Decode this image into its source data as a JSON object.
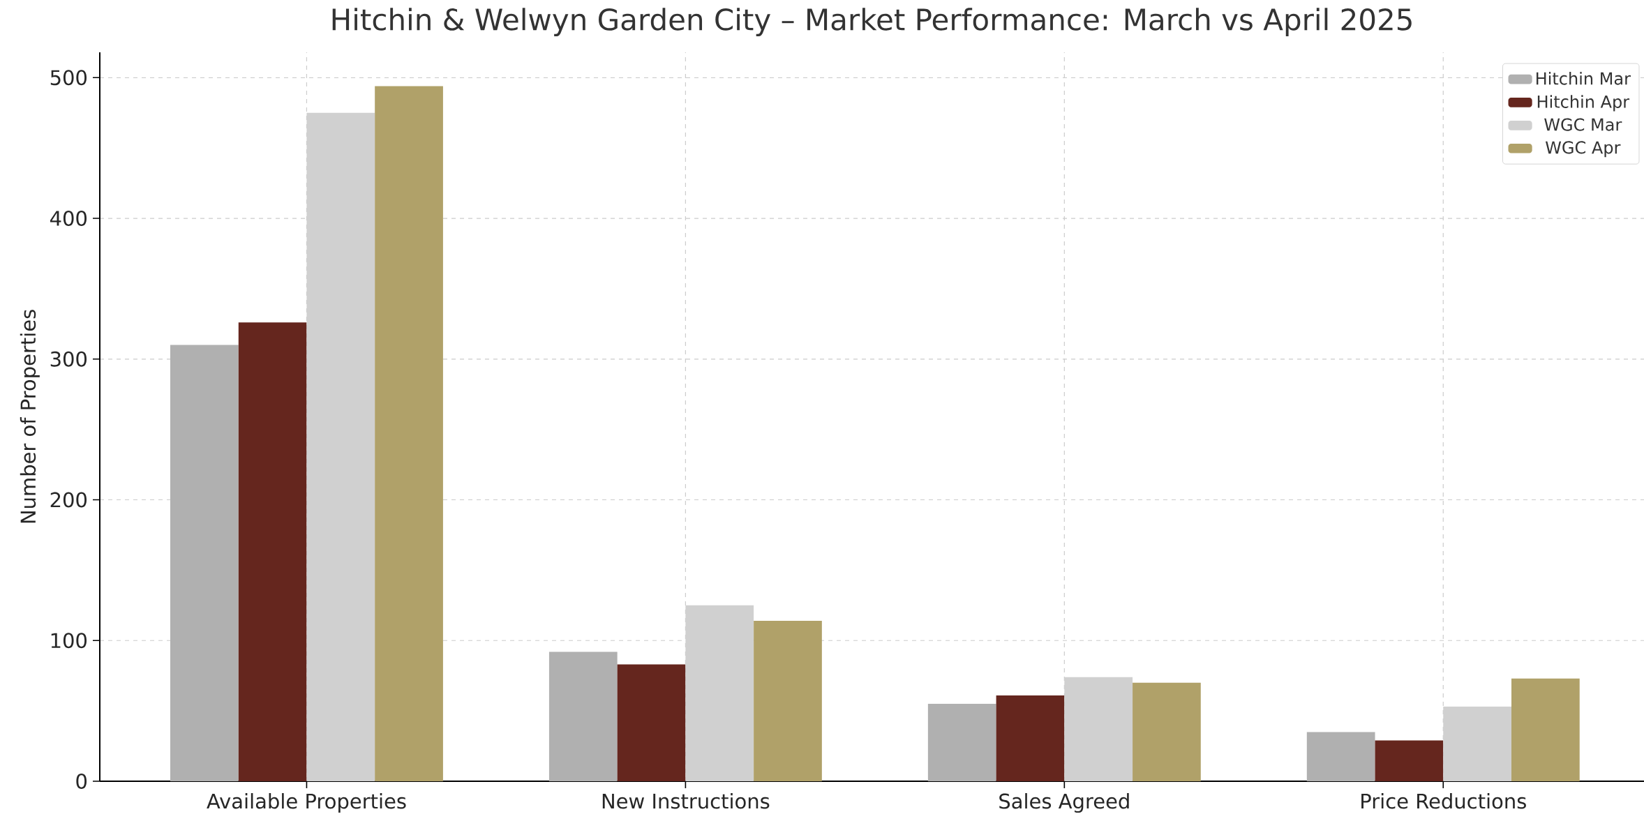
{
  "chart_data": {
    "type": "bar",
    "title": "Hitchin & Welwyn Garden City – Market Performance: March vs April 2025",
    "ylabel": "Number of Properties",
    "categories": [
      "Available Properties",
      "New Instructions",
      "Sales Agreed",
      "Price Reductions"
    ],
    "series": [
      {
        "name": "Hitchin Mar",
        "color": "#b0b0b0",
        "values": [
          310,
          92,
          55,
          35
        ]
      },
      {
        "name": "Hitchin Apr",
        "color": "#65261e",
        "values": [
          326,
          83,
          61,
          29
        ]
      },
      {
        "name": "WGC Mar",
        "color": "#d0d0d0",
        "values": [
          475,
          125,
          74,
          53
        ]
      },
      {
        "name": "WGC Apr",
        "color": "#b0a169",
        "values": [
          494,
          114,
          70,
          73
        ]
      }
    ],
    "ylim": [
      0,
      518
    ],
    "yticks": [
      0,
      100,
      200,
      300,
      400,
      500
    ],
    "grid": true,
    "legend": "top right"
  }
}
